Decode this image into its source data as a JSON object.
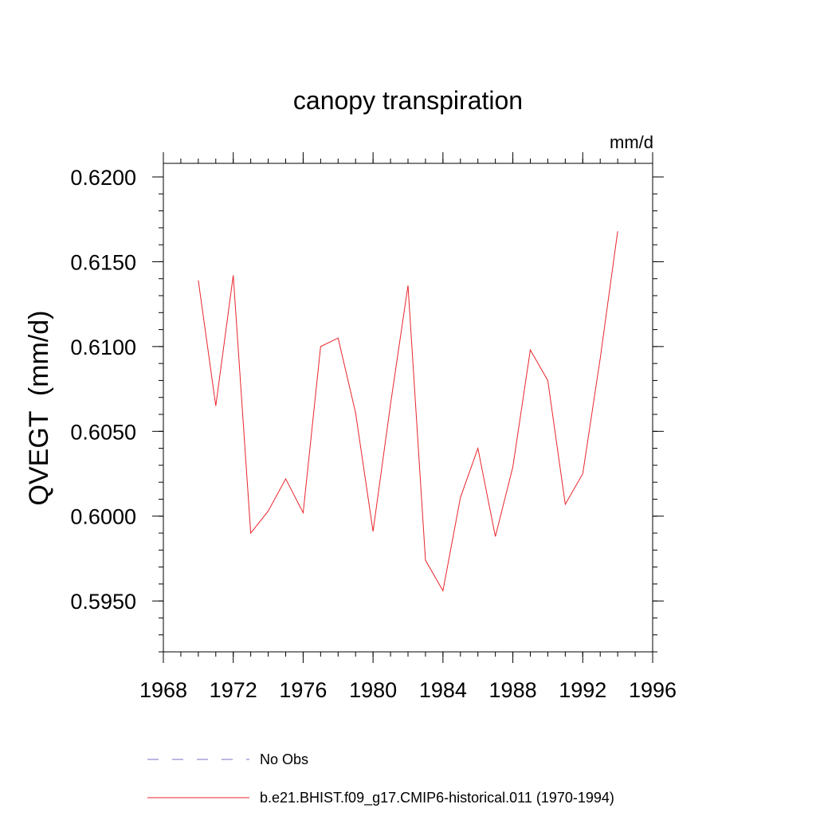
{
  "chart_data": {
    "type": "line",
    "title": "canopy transpiration",
    "units": "mm/d",
    "ylabel": "QVEGT  (mm/d)",
    "xlabel": "",
    "xlim": [
      1968,
      1996
    ],
    "ylim": [
      0.592,
      0.6208
    ],
    "x_ticks": [
      1968,
      1972,
      1976,
      1980,
      1984,
      1988,
      1992,
      1996
    ],
    "x_tick_labels": [
      "1968",
      "1972",
      "1976",
      "1980",
      "1984",
      "1988",
      "1992",
      "1996"
    ],
    "y_ticks": [
      0.595,
      0.6,
      0.605,
      0.61,
      0.615,
      0.62
    ],
    "y_tick_labels": [
      "0.5950",
      "0.6000",
      "0.6050",
      "0.6100",
      "0.6150",
      "0.6200"
    ],
    "grid": false,
    "legend_position": "bottom",
    "series": [
      {
        "name": "No Obs",
        "color": "#7b6fc4",
        "style": "dashed",
        "x": [],
        "y": []
      },
      {
        "name": "b.e21.BHIST.f09_g17.CMIP6-historical.011 (1970-1994)",
        "color": "#e8242b",
        "style": "solid",
        "x": [
          1970,
          1971,
          1972,
          1973,
          1974,
          1975,
          1976,
          1977,
          1978,
          1979,
          1980,
          1981,
          1982,
          1983,
          1984,
          1985,
          1986,
          1987,
          1988,
          1989,
          1990,
          1991,
          1992,
          1993,
          1994
        ],
        "y": [
          0.6139,
          0.6065,
          0.6142,
          0.599,
          0.6003,
          0.6022,
          0.6002,
          0.61,
          0.6105,
          0.6061,
          0.5991,
          0.6066,
          0.6136,
          0.5974,
          0.5956,
          0.6011,
          0.604,
          0.5988,
          0.6029,
          0.6098,
          0.608,
          0.6007,
          0.6025,
          0.6093,
          0.6168
        ]
      }
    ]
  }
}
